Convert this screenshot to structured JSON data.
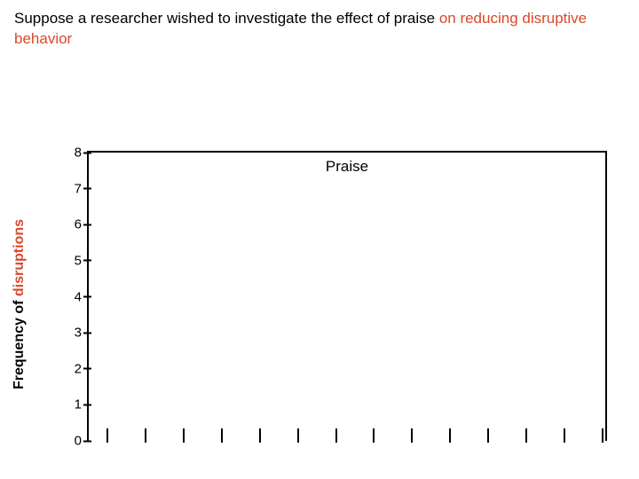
{
  "title": {
    "prefix": "Suppose a researcher wished to investigate the effect of praise ",
    "highlight1": "on reducing disruptive",
    "break_after_highlight1": true,
    "highlight2": "behavior",
    "title_fontsize": 17,
    "text_color": "#000000",
    "highlight_color": "#d9482a"
  },
  "chart": {
    "type": "line",
    "plot_title": "Praise",
    "plot_title_fontsize": 17,
    "y_label_prefix": "Frequency of ",
    "y_label_highlight": "disruptions",
    "y_label_fontsize": 16,
    "y_label_weight": "bold",
    "y_ticks": [
      0,
      1,
      2,
      3,
      4,
      5,
      6,
      7,
      8
    ],
    "y_min": 0,
    "y_max": 8,
    "x_tick_count": 14,
    "x_min": 0,
    "x_max": 14,
    "border_color": "#000000",
    "border_width": 2,
    "background_color": "#ffffff",
    "series": []
  }
}
